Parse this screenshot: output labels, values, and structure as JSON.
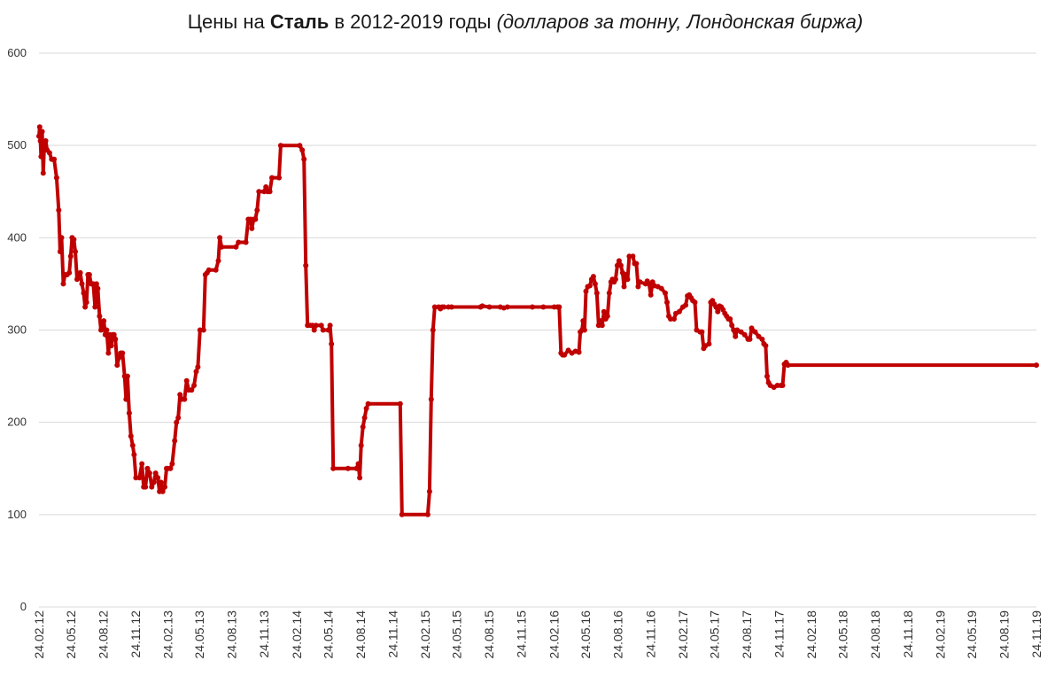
{
  "chart_data": {
    "type": "line",
    "title": {
      "part1": "Цены на ",
      "part2_bold": "Сталь",
      "part3": " в 2012-2019 годы ",
      "part4_italic": "(долларов за тонну, Лондонская биржа)"
    },
    "xlabel": "",
    "ylabel": "",
    "ylim": [
      0,
      600
    ],
    "yticks": [
      "0",
      "100",
      "200",
      "300",
      "400",
      "500",
      "600"
    ],
    "xticks": [
      "24.02.12",
      "24.05.12",
      "24.08.12",
      "24.11.12",
      "24.02.13",
      "24.05.13",
      "24.08.13",
      "24.11.13",
      "24.02.14",
      "24.05.14",
      "24.08.14",
      "24.11.14",
      "24.02.15",
      "24.05.15",
      "24.08.15",
      "24.11.15",
      "24.02.16",
      "24.05.16",
      "24.08.16",
      "24.11.16",
      "24.02.17",
      "24.05.17",
      "24.08.17",
      "24.11.17",
      "24.02.18",
      "24.05.18",
      "24.08.18",
      "24.11.18",
      "24.02.19",
      "24.05.19",
      "24.08.19",
      "24.11.19"
    ],
    "xlim": [
      "24.02.12",
      "24.11.19"
    ],
    "grid": true,
    "legend": "none",
    "line_color": "#c00000",
    "series": [
      {
        "points": [
          [
            "24.02.12",
            510
          ],
          [
            "26.02.12",
            520
          ],
          [
            "28.02.12",
            505
          ],
          [
            "01.03.12",
            488
          ],
          [
            "04.03.12",
            515
          ],
          [
            "07.03.12",
            470
          ],
          [
            "10.03.12",
            500
          ],
          [
            "14.03.12",
            505
          ],
          [
            "18.03.12",
            495
          ],
          [
            "25.03.12",
            492
          ],
          [
            "31.03.12",
            485
          ],
          [
            "07.04.12",
            485
          ],
          [
            "14.04.12",
            465
          ],
          [
            "20.04.12",
            430
          ],
          [
            "24.04.12",
            385
          ],
          [
            "28.04.12",
            400
          ],
          [
            "03.05.12",
            350
          ],
          [
            "08.05.12",
            360
          ],
          [
            "14.05.12",
            360
          ],
          [
            "20.05.12",
            362
          ],
          [
            "24.05.12",
            380
          ],
          [
            "28.05.12",
            400
          ],
          [
            "02.06.12",
            398
          ],
          [
            "06.06.12",
            385
          ],
          [
            "11.06.12",
            355
          ],
          [
            "16.06.12",
            357
          ],
          [
            "20.06.12",
            362
          ],
          [
            "25.06.12",
            350
          ],
          [
            "30.06.12",
            340
          ],
          [
            "04.07.12",
            325
          ],
          [
            "08.07.12",
            330
          ],
          [
            "12.07.12",
            360
          ],
          [
            "16.07.12",
            360
          ],
          [
            "21.07.12",
            350
          ],
          [
            "27.07.12",
            350
          ],
          [
            "01.08.12",
            325
          ],
          [
            "05.08.12",
            350
          ],
          [
            "09.08.12",
            345
          ],
          [
            "14.08.12",
            315
          ],
          [
            "18.08.12",
            300
          ],
          [
            "22.08.12",
            305
          ],
          [
            "26.08.12",
            310
          ],
          [
            "30.08.12",
            295
          ],
          [
            "03.09.12",
            300
          ],
          [
            "08.09.12",
            275
          ],
          [
            "12.09.12",
            295
          ],
          [
            "16.09.12",
            283
          ],
          [
            "20.09.12",
            295
          ],
          [
            "24.09.12",
            295
          ],
          [
            "28.09.12",
            290
          ],
          [
            "03.10.12",
            262
          ],
          [
            "08.10.12",
            270
          ],
          [
            "13.10.12",
            275
          ],
          [
            "18.10.12",
            275
          ],
          [
            "24.10.12",
            250
          ],
          [
            "28.10.12",
            225
          ],
          [
            "01.11.12",
            250
          ],
          [
            "06.11.12",
            210
          ],
          [
            "11.11.12",
            185
          ],
          [
            "16.11.12",
            175
          ],
          [
            "20.11.12",
            165
          ],
          [
            "25.11.12",
            140
          ],
          [
            "05.12.12",
            140
          ],
          [
            "12.12.12",
            155
          ],
          [
            "17.12.12",
            130
          ],
          [
            "22.12.12",
            130
          ],
          [
            "28.12.12",
            150
          ],
          [
            "03.01.13",
            145
          ],
          [
            "09.01.13",
            130
          ],
          [
            "15.01.13",
            135
          ],
          [
            "20.01.13",
            145
          ],
          [
            "26.01.13",
            140
          ],
          [
            "31.01.13",
            125
          ],
          [
            "04.02.13",
            135
          ],
          [
            "09.02.13",
            125
          ],
          [
            "15.02.13",
            130
          ],
          [
            "20.02.13",
            150
          ],
          [
            "24.02.13",
            150
          ],
          [
            "03.03.13",
            150
          ],
          [
            "08.03.13",
            155
          ],
          [
            "15.03.13",
            180
          ],
          [
            "20.03.13",
            200
          ],
          [
            "25.03.13",
            205
          ],
          [
            "30.03.13",
            230
          ],
          [
            "04.04.13",
            225
          ],
          [
            "12.04.13",
            225
          ],
          [
            "18.04.13",
            245
          ],
          [
            "24.04.13",
            235
          ],
          [
            "02.05.13",
            235
          ],
          [
            "09.05.13",
            240
          ],
          [
            "15.05.13",
            255
          ],
          [
            "20.05.13",
            260
          ],
          [
            "26.05.13",
            300
          ],
          [
            "05.06.13",
            300
          ],
          [
            "10.06.13",
            360
          ],
          [
            "15.06.13",
            362
          ],
          [
            "20.06.13",
            365
          ],
          [
            "10.07.13",
            365
          ],
          [
            "17.07.13",
            375
          ],
          [
            "21.07.13",
            400
          ],
          [
            "26.07.13",
            390
          ],
          [
            "05.09.13",
            390
          ],
          [
            "12.09.13",
            395
          ],
          [
            "03.10.13",
            395
          ],
          [
            "10.10.13",
            420
          ],
          [
            "17.10.13",
            420
          ],
          [
            "20.10.13",
            410
          ],
          [
            "25.10.13",
            420
          ],
          [
            "30.10.13",
            420
          ],
          [
            "04.11.13",
            430
          ],
          [
            "09.11.13",
            450
          ],
          [
            "24.11.13",
            450
          ],
          [
            "29.11.13",
            455
          ],
          [
            "04.12.13",
            450
          ],
          [
            "10.12.13",
            450
          ],
          [
            "16.12.13",
            465
          ],
          [
            "05.01.14",
            465
          ],
          [
            "10.01.14",
            500
          ],
          [
            "05.03.14",
            500
          ],
          [
            "12.03.14",
            495
          ],
          [
            "17.03.14",
            485
          ],
          [
            "22.03.14",
            370
          ],
          [
            "27.03.14",
            305
          ],
          [
            "04.04.14",
            305
          ],
          [
            "10.04.14",
            305
          ],
          [
            "15.04.14",
            300
          ],
          [
            "20.04.14",
            305
          ],
          [
            "05.05.14",
            305
          ],
          [
            "10.05.14",
            300
          ],
          [
            "25.05.14",
            300
          ],
          [
            "30.05.14",
            305
          ],
          [
            "03.06.14",
            285
          ],
          [
            "08.06.14",
            150
          ],
          [
            "20.07.14",
            150
          ],
          [
            "13.08.14",
            150
          ],
          [
            "18.08.14",
            155
          ],
          [
            "22.08.14",
            140
          ],
          [
            "26.08.14",
            175
          ],
          [
            "31.08.14",
            195
          ],
          [
            "05.09.14",
            205
          ],
          [
            "10.09.14",
            215
          ],
          [
            "15.09.14",
            220
          ],
          [
            "15.12.14",
            220
          ],
          [
            "20.12.14",
            100
          ],
          [
            "03.03.15",
            100
          ],
          [
            "08.03.15",
            125
          ],
          [
            "13.03.15",
            225
          ],
          [
            "18.03.15",
            300
          ],
          [
            "23.03.15",
            325
          ],
          [
            "03.04.15",
            325
          ],
          [
            "08.04.15",
            323
          ],
          [
            "13.04.15",
            325
          ],
          [
            "18.04.15",
            325
          ],
          [
            "01.05.15",
            325
          ],
          [
            "10.05.15",
            325
          ],
          [
            "31.07.15",
            325
          ],
          [
            "05.08.15",
            326
          ],
          [
            "25.08.15",
            325
          ],
          [
            "25.09.15",
            325
          ],
          [
            "05.10.15",
            324
          ],
          [
            "15.10.15",
            325
          ],
          [
            "25.12.15",
            325
          ],
          [
            "25.01.16",
            325
          ],
          [
            "25.02.16",
            325
          ],
          [
            "05.03.16",
            325
          ],
          [
            "10.03.16",
            325
          ],
          [
            "15.03.16",
            275
          ],
          [
            "20.03.16",
            273
          ],
          [
            "25.03.16",
            273
          ],
          [
            "05.04.16",
            278
          ],
          [
            "15.04.16",
            275
          ],
          [
            "25.04.16",
            277
          ],
          [
            "05.05.16",
            276
          ],
          [
            "09.05.16",
            298
          ],
          [
            "14.05.16",
            300
          ],
          [
            "17.05.16",
            310
          ],
          [
            "21.05.16",
            300
          ],
          [
            "25.05.16",
            342
          ],
          [
            "30.05.16",
            347
          ],
          [
            "05.06.16",
            348
          ],
          [
            "10.06.16",
            355
          ],
          [
            "15.06.16",
            358
          ],
          [
            "20.06.16",
            350
          ],
          [
            "25.06.16",
            340
          ],
          [
            "30.06.16",
            305
          ],
          [
            "05.07.16",
            310
          ],
          [
            "10.07.16",
            305
          ],
          [
            "15.07.16",
            320
          ],
          [
            "20.07.16",
            312
          ],
          [
            "25.07.16",
            315
          ],
          [
            "30.07.16",
            340
          ],
          [
            "04.08.16",
            352
          ],
          [
            "08.08.16",
            355
          ],
          [
            "13.08.16",
            352
          ],
          [
            "17.08.16",
            355
          ],
          [
            "22.08.16",
            370
          ],
          [
            "27.08.16",
            375
          ],
          [
            "01.09.16",
            370
          ],
          [
            "06.09.16",
            362
          ],
          [
            "10.09.16",
            347
          ],
          [
            "15.09.16",
            360
          ],
          [
            "20.09.16",
            355
          ],
          [
            "25.09.16",
            380
          ],
          [
            "05.10.16",
            380
          ],
          [
            "10.10.16",
            372
          ],
          [
            "15.10.16",
            372
          ],
          [
            "20.10.16",
            347
          ],
          [
            "25.10.16",
            352
          ],
          [
            "10.11.16",
            350
          ],
          [
            "15.11.16",
            353
          ],
          [
            "20.11.16",
            350
          ],
          [
            "25.11.16",
            338
          ],
          [
            "30.11.16",
            352
          ],
          [
            "05.12.16",
            348
          ],
          [
            "15.12.16",
            347
          ],
          [
            "25.12.16",
            345
          ],
          [
            "05.01.17",
            340
          ],
          [
            "10.01.17",
            330
          ],
          [
            "15.01.17",
            315
          ],
          [
            "20.01.17",
            312
          ],
          [
            "30.01.17",
            312
          ],
          [
            "04.02.17",
            318
          ],
          [
            "14.02.17",
            320
          ],
          [
            "24.02.17",
            325
          ],
          [
            "04.03.17",
            327
          ],
          [
            "09.03.17",
            337
          ],
          [
            "14.03.17",
            338
          ],
          [
            "19.03.17",
            335
          ],
          [
            "24.03.17",
            332
          ],
          [
            "30.03.17",
            330
          ],
          [
            "04.04.17",
            300
          ],
          [
            "14.04.17",
            298
          ],
          [
            "19.04.17",
            298
          ],
          [
            "24.04.17",
            280
          ],
          [
            "29.04.17",
            283
          ],
          [
            "09.05.17",
            285
          ],
          [
            "14.05.17",
            330
          ],
          [
            "19.05.17",
            332
          ],
          [
            "24.05.17",
            328
          ],
          [
            "29.05.17",
            325
          ],
          [
            "03.06.17",
            320
          ],
          [
            "08.06.17",
            326
          ],
          [
            "13.06.17",
            325
          ],
          [
            "18.06.17",
            322
          ],
          [
            "23.06.17",
            318
          ],
          [
            "28.06.17",
            315
          ],
          [
            "03.07.17",
            312
          ],
          [
            "08.07.17",
            312
          ],
          [
            "13.07.17",
            305
          ],
          [
            "18.07.17",
            300
          ],
          [
            "23.07.17",
            293
          ],
          [
            "28.07.17",
            300
          ],
          [
            "08.08.17",
            298
          ],
          [
            "18.08.17",
            295
          ],
          [
            "28.08.17",
            290
          ],
          [
            "02.09.17",
            290
          ],
          [
            "07.09.17",
            302
          ],
          [
            "17.09.17",
            298
          ],
          [
            "27.09.17",
            293
          ],
          [
            "07.10.17",
            290
          ],
          [
            "12.10.17",
            285
          ],
          [
            "17.10.17",
            283
          ],
          [
            "21.10.17",
            250
          ],
          [
            "25.10.17",
            243
          ],
          [
            "30.10.17",
            240
          ],
          [
            "09.11.17",
            238
          ],
          [
            "19.11.17",
            240
          ],
          [
            "29.11.17",
            240
          ],
          [
            "04.12.17",
            240
          ],
          [
            "09.12.17",
            263
          ],
          [
            "14.12.17",
            265
          ],
          [
            "19.12.17",
            262
          ],
          [
            "24.11.19",
            262
          ]
        ]
      }
    ]
  }
}
